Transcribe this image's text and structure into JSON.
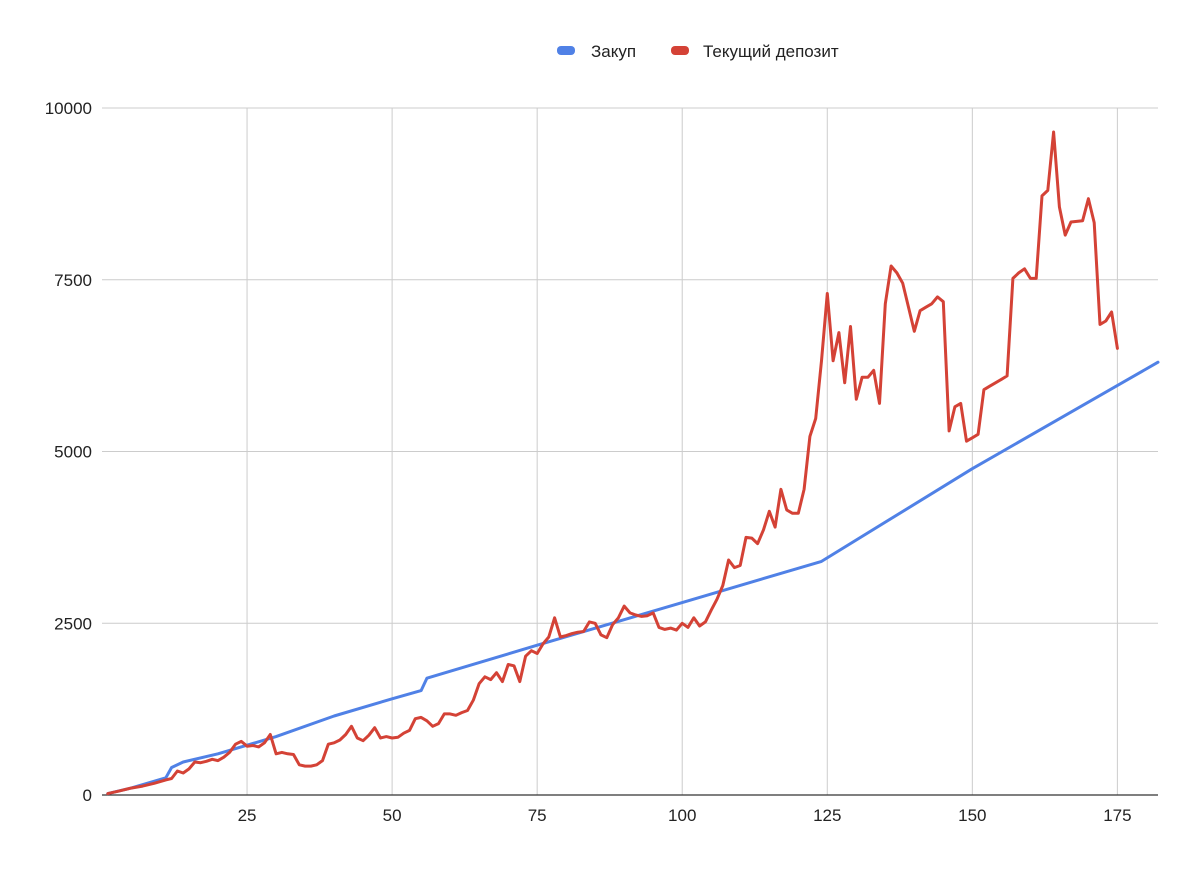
{
  "chart_data": {
    "type": "line",
    "title": "",
    "xlabel": "",
    "ylabel": "",
    "xlim": [
      0,
      182
    ],
    "ylim": [
      0,
      10000
    ],
    "x_ticks": [
      25,
      50,
      75,
      100,
      125,
      150,
      175
    ],
    "y_ticks": [
      0,
      2500,
      5000,
      7500,
      10000
    ],
    "grid": true,
    "legend_position": "top",
    "series": [
      {
        "name": "Закуп",
        "color": "#5081e6",
        "points": [
          [
            1,
            20
          ],
          [
            5,
            100
          ],
          [
            11,
            250
          ],
          [
            12,
            400
          ],
          [
            14,
            480
          ],
          [
            20,
            600
          ],
          [
            30,
            850
          ],
          [
            40,
            1150
          ],
          [
            50,
            1400
          ],
          [
            55,
            1520
          ],
          [
            56,
            1700
          ],
          [
            75,
            2180
          ],
          [
            100,
            2800
          ],
          [
            124,
            3400
          ],
          [
            150,
            4750
          ],
          [
            182,
            6300
          ]
        ]
      },
      {
        "name": "Текущий депозит",
        "color": "#d44236",
        "points": [
          [
            1,
            20
          ],
          [
            3,
            60
          ],
          [
            5,
            100
          ],
          [
            7,
            130
          ],
          [
            9,
            170
          ],
          [
            11,
            220
          ],
          [
            12,
            240
          ],
          [
            13,
            350
          ],
          [
            14,
            320
          ],
          [
            15,
            380
          ],
          [
            16,
            480
          ],
          [
            17,
            470
          ],
          [
            18,
            490
          ],
          [
            19,
            520
          ],
          [
            20,
            500
          ],
          [
            21,
            550
          ],
          [
            22,
            620
          ],
          [
            23,
            740
          ],
          [
            24,
            780
          ],
          [
            25,
            710
          ],
          [
            26,
            720
          ],
          [
            27,
            700
          ],
          [
            28,
            760
          ],
          [
            29,
            880
          ],
          [
            30,
            600
          ],
          [
            31,
            620
          ],
          [
            32,
            600
          ],
          [
            33,
            590
          ],
          [
            34,
            440
          ],
          [
            35,
            420
          ],
          [
            36,
            420
          ],
          [
            37,
            440
          ],
          [
            38,
            500
          ],
          [
            39,
            740
          ],
          [
            40,
            760
          ],
          [
            41,
            800
          ],
          [
            42,
            880
          ],
          [
            43,
            1000
          ],
          [
            44,
            830
          ],
          [
            45,
            790
          ],
          [
            46,
            870
          ],
          [
            47,
            980
          ],
          [
            48,
            830
          ],
          [
            49,
            850
          ],
          [
            50,
            830
          ],
          [
            51,
            840
          ],
          [
            52,
            900
          ],
          [
            53,
            940
          ],
          [
            54,
            1110
          ],
          [
            55,
            1130
          ],
          [
            56,
            1080
          ],
          [
            57,
            1000
          ],
          [
            58,
            1040
          ],
          [
            59,
            1180
          ],
          [
            60,
            1180
          ],
          [
            61,
            1160
          ],
          [
            62,
            1200
          ],
          [
            63,
            1230
          ],
          [
            64,
            1380
          ],
          [
            65,
            1620
          ],
          [
            66,
            1720
          ],
          [
            67,
            1680
          ],
          [
            68,
            1780
          ],
          [
            69,
            1650
          ],
          [
            70,
            1900
          ],
          [
            71,
            1880
          ],
          [
            72,
            1650
          ],
          [
            73,
            2020
          ],
          [
            74,
            2100
          ],
          [
            75,
            2060
          ],
          [
            76,
            2200
          ],
          [
            77,
            2300
          ],
          [
            78,
            2580
          ],
          [
            79,
            2300
          ],
          [
            80,
            2320
          ],
          [
            81,
            2350
          ],
          [
            82,
            2370
          ],
          [
            83,
            2380
          ],
          [
            84,
            2520
          ],
          [
            85,
            2500
          ],
          [
            86,
            2330
          ],
          [
            87,
            2290
          ],
          [
            88,
            2480
          ],
          [
            89,
            2580
          ],
          [
            90,
            2750
          ],
          [
            91,
            2650
          ],
          [
            92,
            2620
          ],
          [
            93,
            2600
          ],
          [
            94,
            2610
          ],
          [
            95,
            2650
          ],
          [
            96,
            2440
          ],
          [
            97,
            2410
          ],
          [
            98,
            2430
          ],
          [
            99,
            2400
          ],
          [
            100,
            2500
          ],
          [
            101,
            2440
          ],
          [
            102,
            2580
          ],
          [
            103,
            2460
          ],
          [
            104,
            2520
          ],
          [
            105,
            2690
          ],
          [
            106,
            2850
          ],
          [
            107,
            3050
          ],
          [
            108,
            3420
          ],
          [
            109,
            3310
          ],
          [
            110,
            3340
          ],
          [
            111,
            3750
          ],
          [
            112,
            3740
          ],
          [
            113,
            3660
          ],
          [
            114,
            3860
          ],
          [
            115,
            4130
          ],
          [
            116,
            3900
          ],
          [
            117,
            4450
          ],
          [
            118,
            4150
          ],
          [
            119,
            4100
          ],
          [
            120,
            4100
          ],
          [
            121,
            4450
          ],
          [
            122,
            5220
          ],
          [
            123,
            5480
          ],
          [
            124,
            6320
          ],
          [
            125,
            7300
          ],
          [
            126,
            6320
          ],
          [
            127,
            6730
          ],
          [
            128,
            6000
          ],
          [
            129,
            6820
          ],
          [
            130,
            5760
          ],
          [
            131,
            6080
          ],
          [
            132,
            6080
          ],
          [
            133,
            6180
          ],
          [
            134,
            5700
          ],
          [
            135,
            7150
          ],
          [
            136,
            7700
          ],
          [
            137,
            7600
          ],
          [
            138,
            7450
          ],
          [
            139,
            7100
          ],
          [
            140,
            6750
          ],
          [
            141,
            7050
          ],
          [
            142,
            7100
          ],
          [
            143,
            7150
          ],
          [
            144,
            7250
          ],
          [
            145,
            7180
          ],
          [
            146,
            5300
          ],
          [
            147,
            5650
          ],
          [
            148,
            5700
          ],
          [
            149,
            5150
          ],
          [
            150,
            5200
          ],
          [
            151,
            5250
          ],
          [
            152,
            5900
          ],
          [
            153,
            5950
          ],
          [
            154,
            6000
          ],
          [
            155,
            6050
          ],
          [
            156,
            6100
          ],
          [
            157,
            7520
          ],
          [
            158,
            7600
          ],
          [
            159,
            7660
          ],
          [
            160,
            7520
          ],
          [
            161,
            7520
          ],
          [
            162,
            8720
          ],
          [
            163,
            8800
          ],
          [
            164,
            9650
          ],
          [
            165,
            8560
          ],
          [
            166,
            8150
          ],
          [
            167,
            8340
          ],
          [
            168,
            8350
          ],
          [
            169,
            8360
          ],
          [
            170,
            8680
          ],
          [
            171,
            8330
          ],
          [
            172,
            6850
          ],
          [
            173,
            6900
          ],
          [
            174,
            7030
          ],
          [
            175,
            6500
          ]
        ]
      }
    ]
  }
}
